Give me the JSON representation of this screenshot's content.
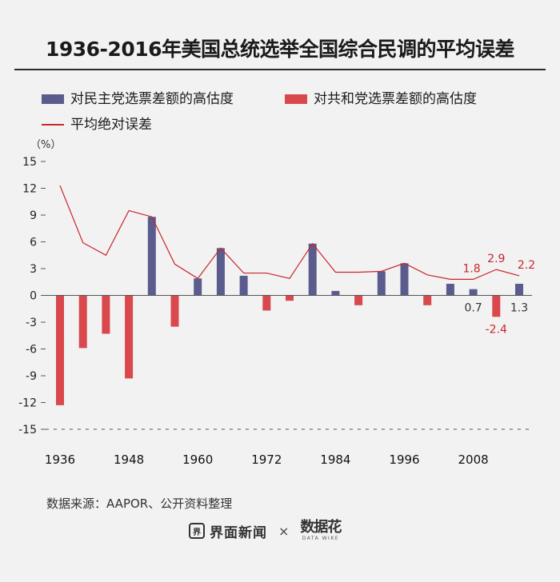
{
  "title": "1936-2016年美国总统选举全国综合民调的平均误差",
  "legend": {
    "dem": "对民主党选票差额的高估度",
    "rep": "对共和党选票差额的高估度",
    "line": "平均绝对误差"
  },
  "unit": "（%）",
  "source": "数据来源：AAPOR、公开资料整理",
  "brand": {
    "icon": "界",
    "name": "界面新闻",
    "separator": "×",
    "partner": "数据花",
    "partner_tag": "DATA WIKE"
  },
  "colors": {
    "dem": "#5b5b8e",
    "rep": "#d9484d",
    "line": "#c8262c",
    "axis": "#555555"
  },
  "chart_data": {
    "type": "bar",
    "title": "1936-2016年美国总统选举全国综合民调的平均误差",
    "ylabel": "（%）",
    "ylim": [
      -15,
      15
    ],
    "yticks": [
      15,
      12,
      9,
      6,
      3,
      0,
      -3,
      -6,
      -9,
      -12,
      -15
    ],
    "years": [
      1936,
      1940,
      1944,
      1948,
      1952,
      1956,
      1960,
      1964,
      1968,
      1972,
      1976,
      1980,
      1984,
      1988,
      1992,
      1996,
      2000,
      2004,
      2008,
      2012,
      2016
    ],
    "xtick_labels": [
      "1936",
      "1948",
      "1960",
      "1972",
      "1984",
      "1996",
      "2008"
    ],
    "series": [
      {
        "name": "对民主党选票差额的高估度",
        "type": "bar",
        "values": [
          null,
          null,
          null,
          null,
          8.8,
          null,
          1.9,
          5.3,
          2.2,
          null,
          null,
          5.8,
          0.5,
          null,
          2.7,
          3.6,
          null,
          1.3,
          0.7,
          null,
          1.3
        ]
      },
      {
        "name": "对共和党选票差额的高估度",
        "type": "bar",
        "values": [
          -12.3,
          -5.9,
          -4.3,
          -9.3,
          null,
          -3.5,
          null,
          null,
          null,
          -1.7,
          -0.6,
          null,
          null,
          -1.1,
          null,
          null,
          -1.1,
          null,
          null,
          -2.4,
          null
        ]
      },
      {
        "name": "平均绝对误差",
        "type": "line",
        "values": [
          12.3,
          5.9,
          4.5,
          9.5,
          8.8,
          3.5,
          1.9,
          5.3,
          2.5,
          2.5,
          1.9,
          5.8,
          2.6,
          2.6,
          2.7,
          3.6,
          2.3,
          1.8,
          1.8,
          2.9,
          2.2
        ]
      }
    ],
    "annotations": [
      {
        "year": 2008,
        "series": "平均绝对误差",
        "text": "1.8"
      },
      {
        "year": 2012,
        "series": "平均绝对误差",
        "text": "2.9"
      },
      {
        "year": 2016,
        "series": "平均绝对误差",
        "text": "2.2"
      },
      {
        "year": 2008,
        "series": "对民主党选票差额的高估度",
        "text": "0.7"
      },
      {
        "year": 2012,
        "series": "对共和党选票差额的高估度",
        "text": "-2.4"
      },
      {
        "year": 2016,
        "series": "对民主党选票差额的高估度",
        "text": "1.3"
      }
    ]
  }
}
